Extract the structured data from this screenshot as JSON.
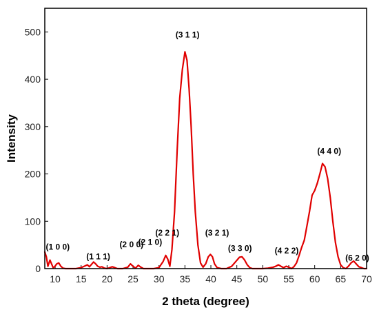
{
  "chart_data": {
    "type": "line",
    "title": "",
    "xlabel": "2 theta (degree)",
    "ylabel": "Intensity",
    "xlim": [
      8,
      70
    ],
    "ylim": [
      0,
      550
    ],
    "xticks": [
      10,
      15,
      20,
      25,
      30,
      35,
      40,
      45,
      50,
      55,
      60,
      65,
      70
    ],
    "yticks": [
      0,
      100,
      200,
      300,
      400,
      500
    ],
    "grid": false,
    "line_color": "#e00000",
    "series": [
      {
        "x": [
          8.0,
          8.3,
          8.6,
          9.0,
          9.3,
          9.6,
          9.9,
          10.3,
          10.7,
          11.1,
          11.5,
          12.0,
          13.0,
          14.0,
          15.0,
          15.6,
          16.2,
          16.6,
          17.0,
          17.4,
          17.8,
          18.2,
          18.6,
          19.0,
          19.5,
          20.0,
          20.5,
          21.0,
          21.5,
          22.0,
          23.0,
          24.0,
          24.5,
          25.0,
          25.5,
          26.0,
          26.5,
          27.0,
          28.0,
          29.0,
          30.0,
          30.8,
          31.3,
          31.7,
          32.1,
          32.5,
          33.0,
          33.5,
          34.0,
          34.5,
          35.0,
          35.4,
          35.8,
          36.2,
          36.6,
          37.0,
          37.5,
          38.0,
          38.5,
          39.0,
          39.5,
          39.9,
          40.3,
          40.7,
          41.2,
          42.0,
          43.0,
          44.0,
          44.8,
          45.5,
          46.0,
          46.5,
          47.0,
          47.5,
          48.0,
          49.0,
          50.0,
          51.0,
          52.0,
          52.5,
          53.0,
          53.5,
          54.0,
          54.5,
          55.0,
          55.5,
          56.0,
          56.5,
          57.0,
          57.5,
          58.0,
          58.5,
          59.0,
          59.5,
          60.0,
          60.5,
          61.0,
          61.5,
          62.0,
          62.5,
          63.0,
          63.5,
          64.0,
          64.5,
          65.0,
          65.5,
          66.0,
          66.5,
          67.0,
          67.5,
          68.0,
          68.5,
          69.0,
          69.5,
          70.0
        ],
        "values": [
          35,
          25,
          5,
          18,
          10,
          2,
          4,
          10,
          12,
          5,
          1,
          0,
          0,
          0,
          2,
          5,
          8,
          4,
          9,
          14,
          10,
          5,
          3,
          4,
          1,
          0,
          2,
          4,
          2,
          0,
          0,
          3,
          10,
          5,
          1,
          7,
          3,
          0,
          0,
          0,
          2,
          15,
          28,
          20,
          5,
          40,
          120,
          250,
          360,
          420,
          458,
          440,
          380,
          300,
          200,
          120,
          50,
          12,
          3,
          10,
          25,
          30,
          25,
          10,
          2,
          0,
          0,
          5,
          15,
          24,
          25,
          18,
          8,
          2,
          0,
          0,
          0,
          1,
          3,
          5,
          8,
          5,
          2,
          5,
          3,
          0,
          4,
          12,
          28,
          45,
          60,
          90,
          120,
          155,
          165,
          180,
          200,
          222,
          215,
          190,
          150,
          100,
          55,
          25,
          8,
          2,
          0,
          5,
          12,
          16,
          10,
          4,
          2,
          0,
          0
        ]
      }
    ],
    "annotations": [
      {
        "text": "(1 0 0)",
        "x": 10.5,
        "y": 40
      },
      {
        "text": "(1 1 1)",
        "x": 18.3,
        "y": 20
      },
      {
        "text": "(2 0 0)",
        "x": 24.7,
        "y": 45
      },
      {
        "text": "(2 1 0)",
        "x": 28.3,
        "y": 50
      },
      {
        "text": "(2 2 1)",
        "x": 31.6,
        "y": 70
      },
      {
        "text": "(3 1 1)",
        "x": 35.5,
        "y": 488
      },
      {
        "text": "(3 2 1)",
        "x": 41.2,
        "y": 70
      },
      {
        "text": "(3 3 0)",
        "x": 45.6,
        "y": 37
      },
      {
        "text": "(4 2 2)",
        "x": 54.6,
        "y": 32
      },
      {
        "text": "(4 4 0)",
        "x": 62.8,
        "y": 242
      },
      {
        "text": "(6 2 0)",
        "x": 68.2,
        "y": 17
      }
    ]
  }
}
